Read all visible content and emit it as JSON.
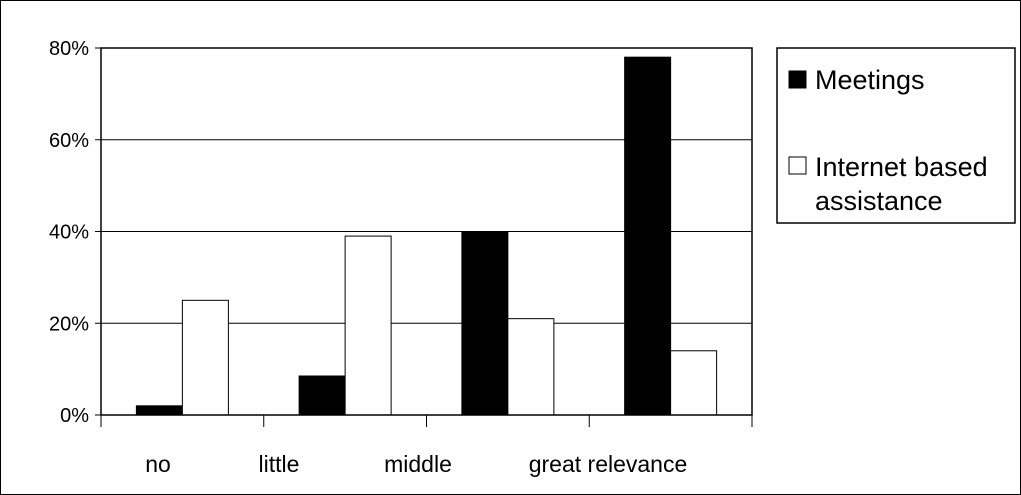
{
  "chart_data": {
    "type": "bar",
    "title": "",
    "xlabel": "",
    "ylabel": "",
    "ylim": [
      0,
      80
    ],
    "yticks": [
      "0%",
      "20%",
      "40%",
      "60%",
      "80%"
    ],
    "categories": [
      "no",
      "little",
      "middle",
      "great relevance"
    ],
    "series": [
      {
        "name": "Meetings",
        "values": [
          2,
          8.5,
          40,
          78
        ],
        "color": "#000000"
      },
      {
        "name": "Internet based assistance",
        "values": [
          25,
          39,
          21,
          14
        ],
        "color": "#ffffff"
      }
    ],
    "legend_lines": {
      "meetings": "Meetings",
      "internet_line1": "Internet based",
      "internet_line2": "assistance"
    },
    "grid": true,
    "legend_position": "right"
  }
}
